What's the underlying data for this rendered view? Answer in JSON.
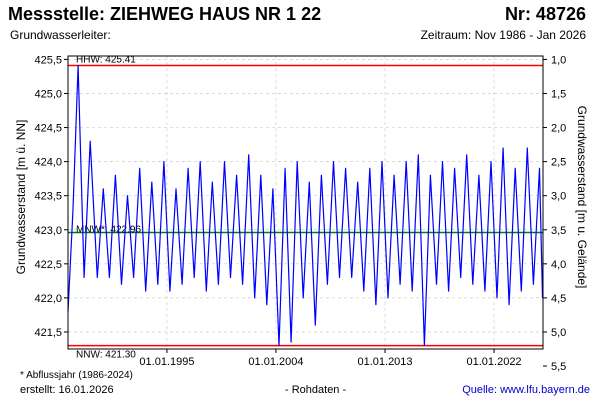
{
  "header": {
    "title_left": "Messstelle: ZIEHWEG HAUS NR 1 22",
    "title_right": "Nr: 48726",
    "subtitle_left": "Grundwasserleiter:",
    "subtitle_right": "Zeitraum: Nov 1986 - Jan 2026"
  },
  "footer": {
    "note": "* Abflussjahr (1986-2024)",
    "created": "erstellt:  16.01.2026",
    "raw_data": "- Rohdaten -",
    "source_prefix": "Quelle: ",
    "source_link": "www.lfu.bayern.de"
  },
  "colors": {
    "series": "#0000ff",
    "hhw": "#ff0000",
    "nnw": "#ff0000",
    "mnw": "#008000",
    "grid": "#cccccc"
  },
  "chart_data": {
    "type": "line",
    "ylabel": "Grundwasserstand [m ü. NN]",
    "y2label": "Grundwasserstand [m u. Gelände]",
    "ylim": [
      421.25,
      425.55
    ],
    "y_ticks": [
      "421,5",
      "422,0",
      "422,5",
      "423,0",
      "423,5",
      "424,0",
      "424,5",
      "425,0",
      "425,5"
    ],
    "y2_ticks": [
      "1,0",
      "1,5",
      "2,0",
      "2,5",
      "3,0",
      "3,5",
      "4,0",
      "4,5",
      "5,0",
      "5,5"
    ],
    "x_ticks": [
      "01.01.1995",
      "01.01.2004",
      "01.01.2013",
      "01.01.2022"
    ],
    "xlim": [
      "1986-11-01",
      "2026-01-16"
    ],
    "grid": true,
    "reference_lines": [
      {
        "name": "HHW",
        "label": "HHW: 425.41",
        "value": 425.41
      },
      {
        "name": "MNW",
        "label": "MNW*: 422.96",
        "value": 422.96
      },
      {
        "name": "NNW",
        "label": "NNW: 421.30",
        "value": 421.3
      }
    ],
    "series": [
      {
        "x": [
          "1986-11",
          "1987-04",
          "1987-09",
          "1988-03",
          "1988-09",
          "1989-04",
          "1989-10",
          "1990-04",
          "1990-10",
          "1991-04",
          "1991-10",
          "1992-04",
          "1992-10",
          "1993-04",
          "1993-10",
          "1994-04",
          "1994-10",
          "1995-04",
          "1995-10",
          "1996-04",
          "1996-10",
          "1997-04",
          "1997-10",
          "1998-04",
          "1998-10",
          "1999-04",
          "1999-10",
          "2000-04",
          "2000-10",
          "2001-04",
          "2001-10",
          "2002-04",
          "2002-10",
          "2003-04",
          "2003-10",
          "2004-04",
          "2004-10",
          "2005-04",
          "2005-10",
          "2006-04",
          "2006-10",
          "2007-04",
          "2007-10",
          "2008-04",
          "2008-10",
          "2009-04",
          "2009-10",
          "2010-04",
          "2010-10",
          "2011-04",
          "2011-10",
          "2012-04",
          "2012-10",
          "2013-04",
          "2013-10",
          "2014-04",
          "2014-10",
          "2015-04",
          "2015-10",
          "2016-04",
          "2016-10",
          "2017-04",
          "2017-10",
          "2018-04",
          "2018-10",
          "2019-04",
          "2019-10",
          "2020-04",
          "2020-10",
          "2021-04",
          "2021-10",
          "2022-04",
          "2022-10",
          "2023-04",
          "2023-10",
          "2024-04",
          "2024-10",
          "2025-04",
          "2025-10",
          "2026-01"
        ],
        "y": [
          421.8,
          423.3,
          425.41,
          422.3,
          424.3,
          422.3,
          423.6,
          422.3,
          423.8,
          422.2,
          423.5,
          422.3,
          423.9,
          422.1,
          423.7,
          422.2,
          424.0,
          422.1,
          423.6,
          422.2,
          423.9,
          422.3,
          424.0,
          422.1,
          423.7,
          422.2,
          424.0,
          422.3,
          423.8,
          422.2,
          424.1,
          422.0,
          423.8,
          421.9,
          423.6,
          421.3,
          423.9,
          421.35,
          424.0,
          422.0,
          423.7,
          421.6,
          423.8,
          422.2,
          424.0,
          422.3,
          423.9,
          422.3,
          423.7,
          422.1,
          423.9,
          421.9,
          424.0,
          422.0,
          423.8,
          422.2,
          424.0,
          422.1,
          424.1,
          421.3,
          423.8,
          422.2,
          424.0,
          422.1,
          423.9,
          422.3,
          424.1,
          422.2,
          423.8,
          422.1,
          424.0,
          422.0,
          424.2,
          421.9,
          423.9,
          422.1,
          424.2,
          422.2,
          423.9,
          422.0
        ]
      }
    ]
  }
}
